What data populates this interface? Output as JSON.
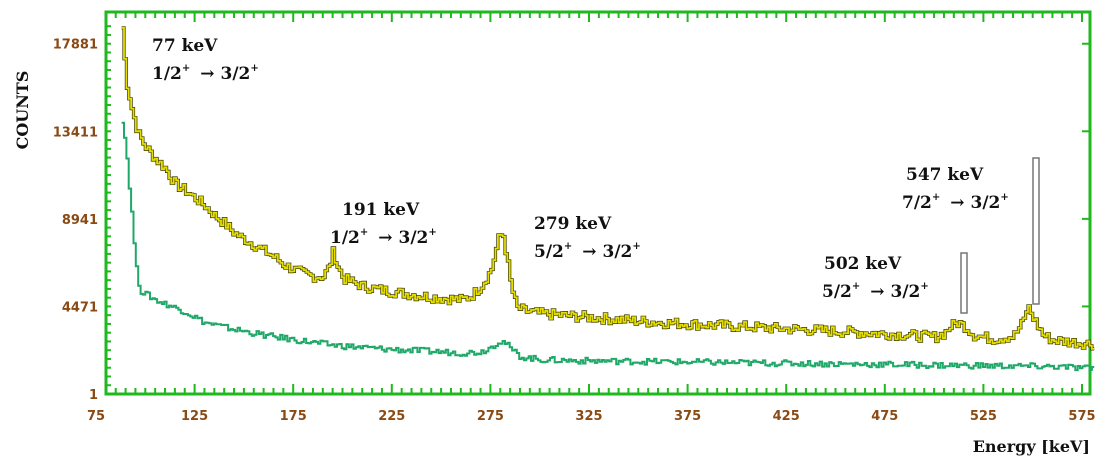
{
  "chart_data": {
    "type": "line",
    "xlabel": "Energy [keV]",
    "ylabel": "COUNTS",
    "xlim": [
      75,
      585
    ],
    "ylim": [
      1,
      19500
    ],
    "x_ticks": [
      "75",
      "125",
      "175",
      "225",
      "275",
      "325",
      "375",
      "425",
      "475",
      "525",
      "575"
    ],
    "y_ticks": [
      "1",
      "4471",
      "8941",
      "13411",
      "17881"
    ],
    "grid": false,
    "series": [
      {
        "color": "#e6de00",
        "x": [
          88,
          90,
          93,
          96,
          100,
          105,
          110,
          115,
          120,
          125,
          130,
          135,
          140,
          145,
          150,
          155,
          160,
          165,
          170,
          175,
          180,
          185,
          190,
          193,
          195,
          197,
          200,
          205,
          210,
          220,
          230,
          240,
          250,
          260,
          265,
          270,
          275,
          279,
          281,
          283,
          285,
          288,
          292,
          300,
          320,
          340,
          360,
          380,
          400,
          420,
          440,
          460,
          480,
          490,
          500,
          505,
          508,
          512,
          516,
          520,
          530,
          540,
          545,
          547,
          550,
          555,
          560,
          570,
          580
        ],
        "values": [
          18700,
          16000,
          14500,
          13300,
          12600,
          12000,
          11500,
          10700,
          10400,
          10000,
          9600,
          9100,
          8700,
          8200,
          7900,
          7600,
          7300,
          7000,
          6600,
          6350,
          6150,
          6000,
          6000,
          6500,
          7300,
          6600,
          5900,
          5700,
          5500,
          5300,
          5150,
          5000,
          4900,
          4800,
          5000,
          5500,
          6300,
          8000,
          8200,
          7000,
          5600,
          4400,
          4250,
          4100,
          3950,
          3800,
          3650,
          3550,
          3450,
          3350,
          3250,
          3150,
          3050,
          2980,
          2900,
          3100,
          3450,
          3650,
          3400,
          3000,
          2800,
          2950,
          3700,
          4500,
          3900,
          3000,
          2750,
          2650,
          2550
        ]
      },
      {
        "color": "#1fa868",
        "x": [
          88,
          90,
          93,
          95,
          97,
          100,
          105,
          110,
          120,
          130,
          140,
          150,
          160,
          170,
          180,
          190,
          200,
          220,
          240,
          260,
          270,
          275,
          279,
          282,
          285,
          290,
          300,
          320,
          360,
          400,
          440,
          480,
          520,
          560,
          580
        ],
        "values": [
          14000,
          12500,
          9000,
          6500,
          5300,
          5100,
          4800,
          4600,
          4200,
          3650,
          3400,
          3200,
          3000,
          2850,
          2700,
          2550,
          2450,
          2300,
          2200,
          2100,
          2150,
          2400,
          2700,
          2650,
          2300,
          1900,
          1750,
          1700,
          1650,
          1600,
          1550,
          1500,
          1450,
          1400,
          1300
        ]
      }
    ]
  },
  "annotations": [
    {
      "energy": "77 keV",
      "pre": "1/2",
      "sup1": "+",
      "arrow": "→",
      "post": "3/2",
      "sup2": "+"
    },
    {
      "energy": "191 keV",
      "pre": "1/2",
      "sup1": "+",
      "arrow": "→",
      "post": "3/2",
      "sup2": "+"
    },
    {
      "energy": "279 keV",
      "pre": "5/2",
      "sup1": "+",
      "arrow": "→",
      "post": "3/2",
      "sup2": "+"
    },
    {
      "energy": "502 keV",
      "pre": "5/2",
      "sup1": "+",
      "arrow": "→",
      "post": "3/2",
      "sup2": "+"
    },
    {
      "energy": "547 keV",
      "pre": "7/2",
      "sup1": "+",
      "arrow": "→",
      "post": "3/2",
      "sup2": "+"
    }
  ],
  "colors": {
    "frame": "#1fb81f",
    "tick_text": "#8a4a14"
  }
}
